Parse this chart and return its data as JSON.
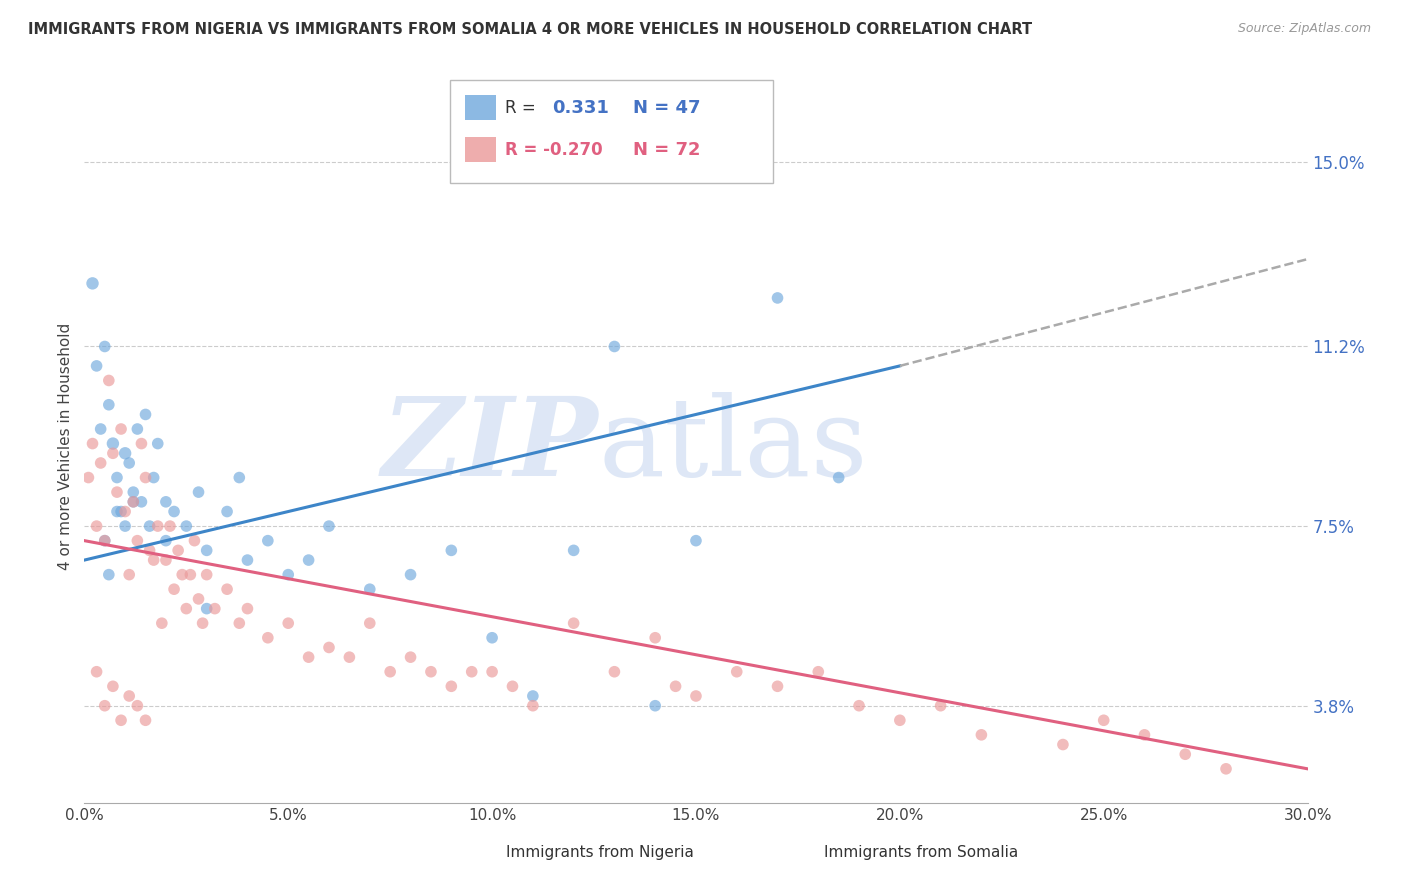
{
  "title": "IMMIGRANTS FROM NIGERIA VS IMMIGRANTS FROM SOMALIA 4 OR MORE VEHICLES IN HOUSEHOLD CORRELATION CHART",
  "source": "Source: ZipAtlas.com",
  "xlabel_ticks": [
    "0.0%",
    "5.0%",
    "10.0%",
    "15.0%",
    "20.0%",
    "25.0%",
    "30.0%"
  ],
  "xlabel_vals": [
    0.0,
    5.0,
    10.0,
    15.0,
    20.0,
    25.0,
    30.0
  ],
  "ylabel": "4 or more Vehicles in Household",
  "ylabel_ticks_right": [
    "3.8%",
    "7.5%",
    "11.2%",
    "15.0%"
  ],
  "ylabel_vals_right": [
    3.8,
    7.5,
    11.2,
    15.0
  ],
  "xlim": [
    0.0,
    30.0
  ],
  "ylim": [
    1.8,
    16.5
  ],
  "nigeria_R": 0.331,
  "nigeria_N": 47,
  "somalia_R": -0.27,
  "somalia_N": 72,
  "nigeria_color": "#6fa8dc",
  "somalia_color": "#ea9999",
  "nigeria_line_color": "#3d85c8",
  "somalia_line_color": "#e06080",
  "nigeria_line_start_x": 0.0,
  "nigeria_line_start_y": 6.8,
  "nigeria_line_solid_end_x": 20.0,
  "nigeria_line_solid_end_y": 10.8,
  "nigeria_line_dash_end_x": 30.0,
  "nigeria_line_dash_end_y": 13.0,
  "somalia_line_start_x": 0.0,
  "somalia_line_start_y": 7.2,
  "somalia_line_end_x": 30.0,
  "somalia_line_end_y": 2.5,
  "nigeria_scatter_x": [
    0.2,
    0.3,
    0.4,
    0.5,
    0.6,
    0.7,
    0.8,
    0.9,
    1.0,
    1.1,
    1.2,
    1.3,
    1.4,
    1.5,
    1.6,
    1.7,
    1.8,
    2.0,
    2.2,
    2.5,
    2.8,
    3.0,
    3.5,
    3.8,
    4.0,
    4.5,
    5.0,
    5.5,
    6.0,
    7.0,
    8.0,
    9.0,
    10.0,
    11.0,
    12.0,
    13.0,
    14.0,
    15.0,
    17.0,
    18.5,
    0.5,
    0.6,
    0.8,
    1.0,
    1.2,
    2.0,
    3.0
  ],
  "nigeria_scatter_y": [
    12.5,
    10.8,
    9.5,
    11.2,
    10.0,
    9.2,
    8.5,
    7.8,
    9.0,
    8.8,
    8.2,
    9.5,
    8.0,
    9.8,
    7.5,
    8.5,
    9.2,
    8.0,
    7.8,
    7.5,
    8.2,
    7.0,
    7.8,
    8.5,
    6.8,
    7.2,
    6.5,
    6.8,
    7.5,
    6.2,
    6.5,
    7.0,
    5.2,
    4.0,
    7.0,
    11.2,
    3.8,
    7.2,
    12.2,
    8.5,
    7.2,
    6.5,
    7.8,
    7.5,
    8.0,
    7.2,
    5.8
  ],
  "nigeria_scatter_size": [
    80,
    70,
    70,
    70,
    70,
    80,
    70,
    70,
    80,
    70,
    70,
    70,
    70,
    70,
    70,
    70,
    70,
    70,
    70,
    70,
    70,
    70,
    70,
    70,
    70,
    70,
    70,
    70,
    70,
    70,
    70,
    70,
    70,
    70,
    70,
    70,
    70,
    70,
    70,
    70,
    70,
    70,
    70,
    70,
    70,
    70,
    70
  ],
  "somalia_scatter_x": [
    0.1,
    0.2,
    0.3,
    0.4,
    0.5,
    0.6,
    0.7,
    0.8,
    0.9,
    1.0,
    1.1,
    1.2,
    1.3,
    1.4,
    1.5,
    1.6,
    1.7,
    1.8,
    1.9,
    2.0,
    2.1,
    2.2,
    2.3,
    2.4,
    2.5,
    2.6,
    2.7,
    2.8,
    2.9,
    3.0,
    3.2,
    3.5,
    3.8,
    4.0,
    4.5,
    5.0,
    5.5,
    6.0,
    6.5,
    7.0,
    7.5,
    8.0,
    8.5,
    9.0,
    9.5,
    10.0,
    10.5,
    11.0,
    12.0,
    13.0,
    14.0,
    14.5,
    15.0,
    16.0,
    17.0,
    18.0,
    19.0,
    20.0,
    21.0,
    22.0,
    24.0,
    25.0,
    26.0,
    27.0,
    28.0,
    0.3,
    0.5,
    0.7,
    0.9,
    1.1,
    1.3,
    1.5
  ],
  "somalia_scatter_y": [
    8.5,
    9.2,
    7.5,
    8.8,
    7.2,
    10.5,
    9.0,
    8.2,
    9.5,
    7.8,
    6.5,
    8.0,
    7.2,
    9.2,
    8.5,
    7.0,
    6.8,
    7.5,
    5.5,
    6.8,
    7.5,
    6.2,
    7.0,
    6.5,
    5.8,
    6.5,
    7.2,
    6.0,
    5.5,
    6.5,
    5.8,
    6.2,
    5.5,
    5.8,
    5.2,
    5.5,
    4.8,
    5.0,
    4.8,
    5.5,
    4.5,
    4.8,
    4.5,
    4.2,
    4.5,
    4.5,
    4.2,
    3.8,
    5.5,
    4.5,
    5.2,
    4.2,
    4.0,
    4.5,
    4.2,
    4.5,
    3.8,
    3.5,
    3.8,
    3.2,
    3.0,
    3.5,
    3.2,
    2.8,
    2.5,
    4.5,
    3.8,
    4.2,
    3.5,
    4.0,
    3.8,
    3.5
  ],
  "somalia_scatter_size": [
    70,
    70,
    70,
    70,
    70,
    70,
    70,
    70,
    70,
    70,
    70,
    70,
    70,
    70,
    70,
    70,
    70,
    70,
    70,
    70,
    70,
    70,
    70,
    70,
    70,
    70,
    70,
    70,
    70,
    70,
    70,
    70,
    70,
    70,
    70,
    70,
    70,
    70,
    70,
    70,
    70,
    70,
    70,
    70,
    70,
    70,
    70,
    70,
    70,
    70,
    70,
    70,
    70,
    70,
    70,
    70,
    70,
    70,
    70,
    70,
    70,
    70,
    70,
    70,
    70,
    70,
    70,
    70,
    70,
    70,
    70,
    70
  ],
  "watermark_zip": "ZIP",
  "watermark_atlas": "atlas",
  "watermark_color": "#c8d8f0",
  "background_color": "#ffffff",
  "grid_color": "#cccccc",
  "legend_R_nigeria": "R =",
  "legend_val_nigeria": "0.331",
  "legend_N_nigeria": "N = 47",
  "legend_R_somalia": "R = -0.270",
  "legend_val_somalia": "-0.270",
  "legend_N_somalia": "N = 72"
}
